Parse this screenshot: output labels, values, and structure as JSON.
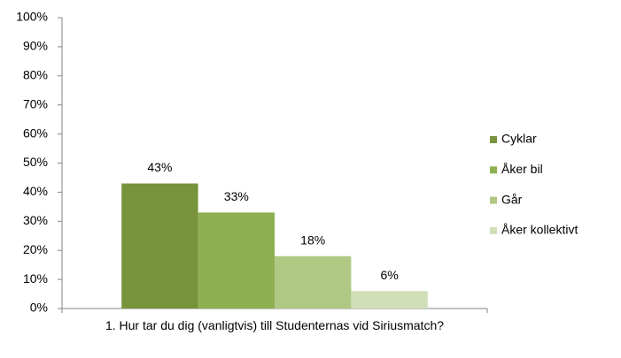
{
  "chart_data": {
    "type": "bar",
    "categories": [
      "1. Hur tar du dig (vanligtvis) till Studenternas vid Siriusmatch?"
    ],
    "series": [
      {
        "name": "Cyklar",
        "color": "#77933c",
        "values": [
          43
        ],
        "value_labels": [
          "43%"
        ]
      },
      {
        "name": "Åker bil",
        "color": "#8eb050",
        "values": [
          33
        ],
        "value_labels": [
          "33%"
        ]
      },
      {
        "name": "Går",
        "color": "#afc985",
        "values": [
          18
        ],
        "value_labels": [
          "18%"
        ]
      },
      {
        "name": "Åker kollektivt",
        "color": "#d0dfb8",
        "values": [
          6
        ],
        "value_labels": [
          "6%"
        ]
      }
    ],
    "ylim": [
      0,
      100
    ],
    "yticks": [
      {
        "value": 0,
        "label": "0%"
      },
      {
        "value": 10,
        "label": "10%"
      },
      {
        "value": 20,
        "label": "20%"
      },
      {
        "value": 30,
        "label": "30%"
      },
      {
        "value": 40,
        "label": "40%"
      },
      {
        "value": 50,
        "label": "50%"
      },
      {
        "value": 60,
        "label": "60%"
      },
      {
        "value": 70,
        "label": "70%"
      },
      {
        "value": 80,
        "label": "80%"
      },
      {
        "value": 90,
        "label": "90%"
      },
      {
        "value": 100,
        "label": "100%"
      }
    ],
    "legend": "right"
  }
}
